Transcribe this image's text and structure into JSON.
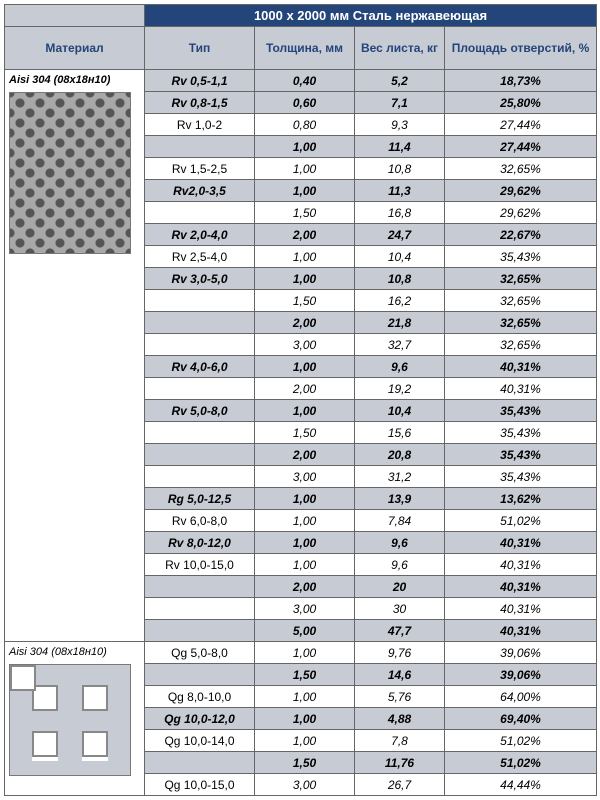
{
  "title": "1000 х 2000 мм Сталь нержавеющая",
  "columns": {
    "material": "Материал",
    "type": "Тип",
    "thickness": "Толщина, мм",
    "weight": "Вес листа, кг",
    "area": "Площадь отверстий, %"
  },
  "section1": {
    "material": "Aisi 304 (08х18н10)",
    "rows": [
      {
        "t": "Rv 0,5-1,1",
        "th": "0,40",
        "w": "5,2",
        "a": "18,73%",
        "em": true,
        "bg": "g"
      },
      {
        "t": "Rv 0,8-1,5",
        "th": "0,60",
        "w": "7,1",
        "a": "25,80%",
        "em": true,
        "bg": "g"
      },
      {
        "t": "Rv 1,0-2",
        "th": "0,80",
        "w": "9,3",
        "a": "27,44%",
        "em": false,
        "bg": "w"
      },
      {
        "t": "",
        "th": "1,00",
        "w": "11,4",
        "a": "27,44%",
        "em": true,
        "bg": "g"
      },
      {
        "t": "Rv 1,5-2,5",
        "th": "1,00",
        "w": "10,8",
        "a": "32,65%",
        "em": false,
        "bg": "w"
      },
      {
        "t": "Rv2,0-3,5",
        "th": "1,00",
        "w": "11,3",
        "a": "29,62%",
        "em": true,
        "bg": "g"
      },
      {
        "t": "",
        "th": "1,50",
        "w": "16,8",
        "a": "29,62%",
        "em": false,
        "bg": "w"
      },
      {
        "t": "Rv 2,0-4,0",
        "th": "2,00",
        "w": "24,7",
        "a": "22,67%",
        "em": true,
        "bg": "g"
      },
      {
        "t": "Rv 2,5-4,0",
        "th": "1,00",
        "w": "10,4",
        "a": "35,43%",
        "em": false,
        "bg": "w"
      },
      {
        "t": "Rv 3,0-5,0",
        "th": "1,00",
        "w": "10,8",
        "a": "32,65%",
        "em": true,
        "bg": "g"
      },
      {
        "t": "",
        "th": "1,50",
        "w": "16,2",
        "a": "32,65%",
        "em": false,
        "bg": "w"
      },
      {
        "t": "",
        "th": "2,00",
        "w": "21,8",
        "a": "32,65%",
        "em": true,
        "bg": "g"
      },
      {
        "t": "",
        "th": "3,00",
        "w": "32,7",
        "a": "32,65%",
        "em": false,
        "bg": "w"
      },
      {
        "t": "Rv 4,0-6,0",
        "th": "1,00",
        "w": "9,6",
        "a": "40,31%",
        "em": true,
        "bg": "g"
      },
      {
        "t": "",
        "th": "2,00",
        "w": "19,2",
        "a": "40,31%",
        "em": false,
        "bg": "w"
      },
      {
        "t": "Rv 5,0-8,0",
        "th": "1,00",
        "w": "10,4",
        "a": "35,43%",
        "em": true,
        "bg": "g"
      },
      {
        "t": "",
        "th": "1,50",
        "w": "15,6",
        "a": "35,43%",
        "em": false,
        "bg": "w"
      },
      {
        "t": "",
        "th": "2,00",
        "w": "20,8",
        "a": "35,43%",
        "em": true,
        "bg": "g"
      },
      {
        "t": "",
        "th": "3,00",
        "w": "31,2",
        "a": "35,43%",
        "em": false,
        "bg": "w"
      },
      {
        "t": "Rg 5,0-12,5",
        "th": "1,00",
        "w": "13,9",
        "a": "13,62%",
        "em": true,
        "bg": "g"
      },
      {
        "t": "Rv 6,0-8,0",
        "th": "1,00",
        "w": "7,84",
        "a": "51,02%",
        "em": false,
        "bg": "w"
      },
      {
        "t": "Rv 8,0-12,0",
        "th": "1,00",
        "w": "9,6",
        "a": "40,31%",
        "em": true,
        "bg": "g"
      },
      {
        "t": "Rv 10,0-15,0",
        "th": "1,00",
        "w": "9,6",
        "a": "40,31%",
        "em": false,
        "bg": "w"
      },
      {
        "t": "",
        "th": "2,00",
        "w": "20",
        "a": "40,31%",
        "em": true,
        "bg": "g"
      },
      {
        "t": "",
        "th": "3,00",
        "w": "30",
        "a": "40,31%",
        "em": false,
        "bg": "w"
      },
      {
        "t": "",
        "th": "5,00",
        "w": "47,7",
        "a": "40,31%",
        "em": true,
        "bg": "g"
      }
    ]
  },
  "section2": {
    "material": "Aisi 304 (08х18н10)",
    "rows": [
      {
        "t": "Qg 5,0-8,0",
        "th": "1,00",
        "w": "9,76",
        "a": "39,06%",
        "em": false,
        "bg": "w"
      },
      {
        "t": "",
        "th": "1,50",
        "w": "14,6",
        "a": "39,06%",
        "em": true,
        "bg": "g"
      },
      {
        "t": "Qg 8,0-10,0",
        "th": "1,00",
        "w": "5,76",
        "a": "64,00%",
        "em": false,
        "bg": "w"
      },
      {
        "t": "Qg 10,0-12,0",
        "th": "1,00",
        "w": "4,88",
        "a": "69,40%",
        "em": true,
        "bg": "g"
      },
      {
        "t": "Qg 10,0-14,0",
        "th": "1,00",
        "w": "7,8",
        "a": "51,02%",
        "em": false,
        "bg": "w"
      },
      {
        "t": "",
        "th": "1,50",
        "w": "11,76",
        "a": "51,02%",
        "em": true,
        "bg": "g"
      },
      {
        "t": "Qg 10,0-15,0",
        "th": "3,00",
        "w": "26,7",
        "a": "44,44%",
        "em": false,
        "bg": "w"
      }
    ]
  }
}
